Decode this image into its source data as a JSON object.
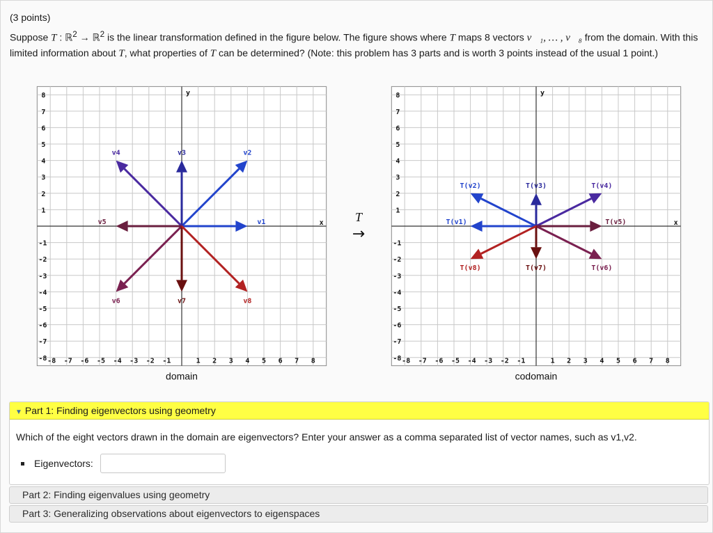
{
  "problem": {
    "points": "(3 points)",
    "prompt_1": "Suppose",
    "T": "T",
    "prompt_colon": " : ℝ",
    "sup2": "2",
    "prompt_arrow": " → ℝ",
    "prompt_2": " is the linear transformation defined in the figure below. The figure shows where",
    "prompt_3": " maps 8 vectors",
    "vec_range": "v⃗₁, … , v⃗₈",
    "prompt_4": " from the domain. With this limited information about",
    "prompt_5": ", what properties of",
    "prompt_6": " can be determined? (Note: this problem has 3 parts and is worth 3 points instead of the usual 1 point.)"
  },
  "figure": {
    "map_symbol": "T",
    "map_arrow": "→",
    "domain_caption": "domain",
    "codomain_caption": "codomain",
    "axis_x_label": "x",
    "axis_y_label": "y",
    "ticks_pos": [
      "1",
      "2",
      "3",
      "4",
      "5",
      "6",
      "7",
      "8"
    ],
    "ticks_neg": [
      "-1",
      "-2",
      "-3",
      "-4",
      "-5",
      "-6",
      "-7",
      "-8"
    ],
    "domain_vectors": [
      {
        "name": "v1",
        "x": 4,
        "y": 0,
        "color": "#2244cc"
      },
      {
        "name": "v2",
        "x": 4,
        "y": 4,
        "color": "#2244cc"
      },
      {
        "name": "v3",
        "x": 0,
        "y": 4,
        "color": "#2a2a9c"
      },
      {
        "name": "v4",
        "x": -4,
        "y": 4,
        "color": "#4a2aa0"
      },
      {
        "name": "v5",
        "x": -4,
        "y": 0,
        "color": "#6a1f3f"
      },
      {
        "name": "v6",
        "x": -4,
        "y": -4,
        "color": "#7a2050"
      },
      {
        "name": "v7",
        "x": 0,
        "y": -4,
        "color": "#6a1010"
      },
      {
        "name": "v8",
        "x": 4,
        "y": -4,
        "color": "#b22222"
      }
    ],
    "codomain_vectors": [
      {
        "name": "T(v1)",
        "x": -4,
        "y": 0,
        "color": "#2244cc"
      },
      {
        "name": "T(v2)",
        "x": -4,
        "y": 2,
        "color": "#2244cc"
      },
      {
        "name": "T(v3)",
        "x": 0,
        "y": 2,
        "color": "#2a2a9c"
      },
      {
        "name": "T(v4)",
        "x": 4,
        "y": 2,
        "color": "#4a2aa0"
      },
      {
        "name": "T(v5)",
        "x": 4,
        "y": 0,
        "color": "#6a1f3f"
      },
      {
        "name": "T(v6)",
        "x": 4,
        "y": -2,
        "color": "#7a2050"
      },
      {
        "name": "T(v7)",
        "x": 0,
        "y": -2,
        "color": "#6a1010"
      },
      {
        "name": "T(v8)",
        "x": -4,
        "y": -2,
        "color": "#b22222"
      }
    ]
  },
  "part1": {
    "header": "Part 1: Finding eigenvectors using geometry",
    "question": "Which of the eight vectors drawn in the domain are eigenvectors? Enter your answer as a comma separated list of vector names, such as v1,v2.",
    "answer_label": "Eigenvectors:",
    "answer_value": ""
  },
  "part2": {
    "header": "Part 2: Finding eigenvalues using geometry"
  },
  "part3": {
    "header": "Part 3: Generalizing observations about eigenvectors to eigenspaces"
  }
}
